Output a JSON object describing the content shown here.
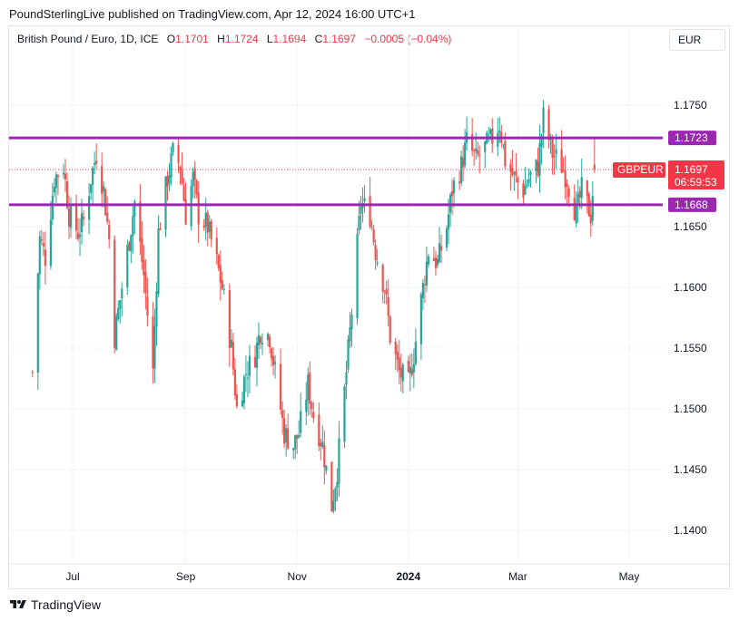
{
  "header": {
    "published": "PoundSterlingLive published on TradingView.com, Apr 12, 2024 16:00 UTC+1"
  },
  "legend": {
    "symbol": "British Pound / Euro, 1D, ICE",
    "open_label": "O",
    "open": "1.1701",
    "high_label": "H",
    "high": "1.1724",
    "low_label": "L",
    "low": "1.1694",
    "close_label": "C",
    "close": "1.1697",
    "change": "−0.0005 (−0.04%)"
  },
  "currency_button": "EUR",
  "footer": {
    "brand": "TradingView"
  },
  "colors": {
    "up": "#26a69a",
    "down": "#ef5350",
    "level_line": "#9c27b0",
    "price_tag": "#f23645"
  },
  "chart_data": {
    "type": "candlestick",
    "symbol": "GBPEUR",
    "x_ticks": [
      "Jul",
      "Sep",
      "Nov",
      "2024",
      "Mar",
      "May"
    ],
    "y_ticks": [
      "1.1750",
      "1.1650",
      "1.1600",
      "1.1550",
      "1.1500",
      "1.1450",
      "1.1400"
    ],
    "ylim": [
      1.138,
      1.1775
    ],
    "horizontal_levels": [
      {
        "value": 1.1723,
        "label": "1.1723"
      },
      {
        "value": 1.1668,
        "label": "1.1668"
      }
    ],
    "last_price": {
      "value": 1.1697,
      "label": "1.1697",
      "countdown": "06:59:53",
      "series_tag": "GBPEUR"
    },
    "x_range": [
      "2023-06-09",
      "2024-05-23"
    ],
    "series": [
      {
        "close_points": [
          [
            "2023-06-09",
            1.153
          ],
          [
            "2023-06-13",
            1.164
          ],
          [
            "2023-06-16",
            1.1625
          ],
          [
            "2023-06-21",
            1.169
          ],
          [
            "2023-06-26",
            1.17
          ],
          [
            "2023-06-29",
            1.166
          ],
          [
            "2023-07-04",
            1.1645
          ],
          [
            "2023-07-07",
            1.1655
          ],
          [
            "2023-07-11",
            1.169
          ],
          [
            "2023-07-14",
            1.171
          ],
          [
            "2023-07-18",
            1.168
          ],
          [
            "2023-07-21",
            1.164
          ],
          [
            "2023-07-24",
            1.156
          ],
          [
            "2023-07-27",
            1.159
          ],
          [
            "2023-08-01",
            1.164
          ],
          [
            "2023-08-04",
            1.167
          ],
          [
            "2023-08-09",
            1.161
          ],
          [
            "2023-08-14",
            1.153
          ],
          [
            "2023-08-17",
            1.1645
          ],
          [
            "2023-08-22",
            1.169
          ],
          [
            "2023-08-25",
            1.171
          ],
          [
            "2023-08-29",
            1.17
          ],
          [
            "2023-09-01",
            1.166
          ],
          [
            "2023-09-05",
            1.169
          ],
          [
            "2023-09-08",
            1.166
          ],
          [
            "2023-09-13",
            1.165
          ],
          [
            "2023-09-18",
            1.162
          ],
          [
            "2023-09-21",
            1.16
          ],
          [
            "2023-09-26",
            1.155
          ],
          [
            "2023-09-29",
            1.15
          ],
          [
            "2023-10-04",
            1.153
          ],
          [
            "2023-10-09",
            1.1545
          ],
          [
            "2023-10-12",
            1.1565
          ],
          [
            "2023-10-17",
            1.156
          ],
          [
            "2023-10-20",
            1.153
          ],
          [
            "2023-10-25",
            1.148
          ],
          [
            "2023-10-30",
            1.147
          ],
          [
            "2023-11-02",
            1.148
          ],
          [
            "2023-11-07",
            1.152
          ],
          [
            "2023-11-10",
            1.1495
          ],
          [
            "2023-11-15",
            1.147
          ],
          [
            "2023-11-20",
            1.142
          ],
          [
            "2023-11-23",
            1.145
          ],
          [
            "2023-11-28",
            1.153
          ],
          [
            "2023-12-01",
            1.158
          ],
          [
            "2023-12-06",
            1.167
          ],
          [
            "2023-12-11",
            1.166
          ],
          [
            "2023-12-14",
            1.163
          ],
          [
            "2023-12-19",
            1.16
          ],
          [
            "2023-12-22",
            1.156
          ],
          [
            "2023-12-27",
            1.153
          ],
          [
            "2024-01-01",
            1.152
          ],
          [
            "2024-01-04",
            1.1545
          ],
          [
            "2024-01-09",
            1.16
          ],
          [
            "2024-01-12",
            1.163
          ],
          [
            "2024-01-17",
            1.162
          ],
          [
            "2024-01-22",
            1.165
          ],
          [
            "2024-01-25",
            1.168
          ],
          [
            "2024-01-30",
            1.17
          ],
          [
            "2024-02-02",
            1.172
          ],
          [
            "2024-02-07",
            1.1705
          ],
          [
            "2024-02-12",
            1.1715
          ],
          [
            "2024-02-15",
            1.172
          ],
          [
            "2024-02-20",
            1.1735
          ],
          [
            "2024-02-23",
            1.1705
          ],
          [
            "2024-02-28",
            1.169
          ],
          [
            "2024-03-04",
            1.168
          ],
          [
            "2024-03-07",
            1.169
          ],
          [
            "2024-03-12",
            1.17
          ],
          [
            "2024-03-15",
            1.174
          ],
          [
            "2024-03-20",
            1.171
          ],
          [
            "2024-03-25",
            1.17
          ],
          [
            "2024-03-28",
            1.169
          ],
          [
            "2024-04-02",
            1.166
          ],
          [
            "2024-04-05",
            1.168
          ],
          [
            "2024-04-10",
            1.166
          ],
          [
            "2024-04-12",
            1.1697
          ]
        ]
      }
    ]
  }
}
